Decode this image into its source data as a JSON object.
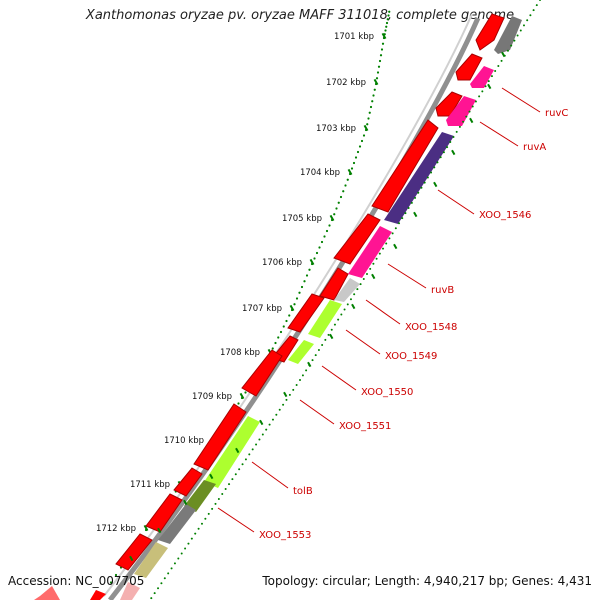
{
  "title": "Xanthomonas oryzae pv. oryzae MAFF 311018, complete genome",
  "footer": {
    "accession": "Accession: NC_007705",
    "topology": "Topology: circular; Length: 4,940,217 bp; Genes: 4,431"
  },
  "ruler": [
    "1701 kbp",
    "1702 kbp",
    "1703 kbp",
    "1704 kbp",
    "1705 kbp",
    "1706 kbp",
    "1707 kbp",
    "1708 kbp",
    "1709 kbp",
    "1710 kbp",
    "1711 kbp",
    "1712 kbp"
  ],
  "colors": {
    "cds": "#ff0000",
    "backbone": "#808080",
    "ruler_dots": "#008000",
    "label": "#cc0000",
    "ruv": "#ff1493",
    "xoo1546": "#4b2e83",
    "xoo1548": "#c8c8c8",
    "lime": "#adff2f",
    "olive": "#6b8e23",
    "gray_block": "#7a7a7a",
    "khaki": "#c8bf7a"
  },
  "gene_labels": [
    "ruvC",
    "ruvA",
    "XOO_1546",
    "ruvB",
    "XOO_1548",
    "XOO_1549",
    "XOO_1550",
    "XOO_1551",
    "tolB",
    "XOO_1553"
  ]
}
